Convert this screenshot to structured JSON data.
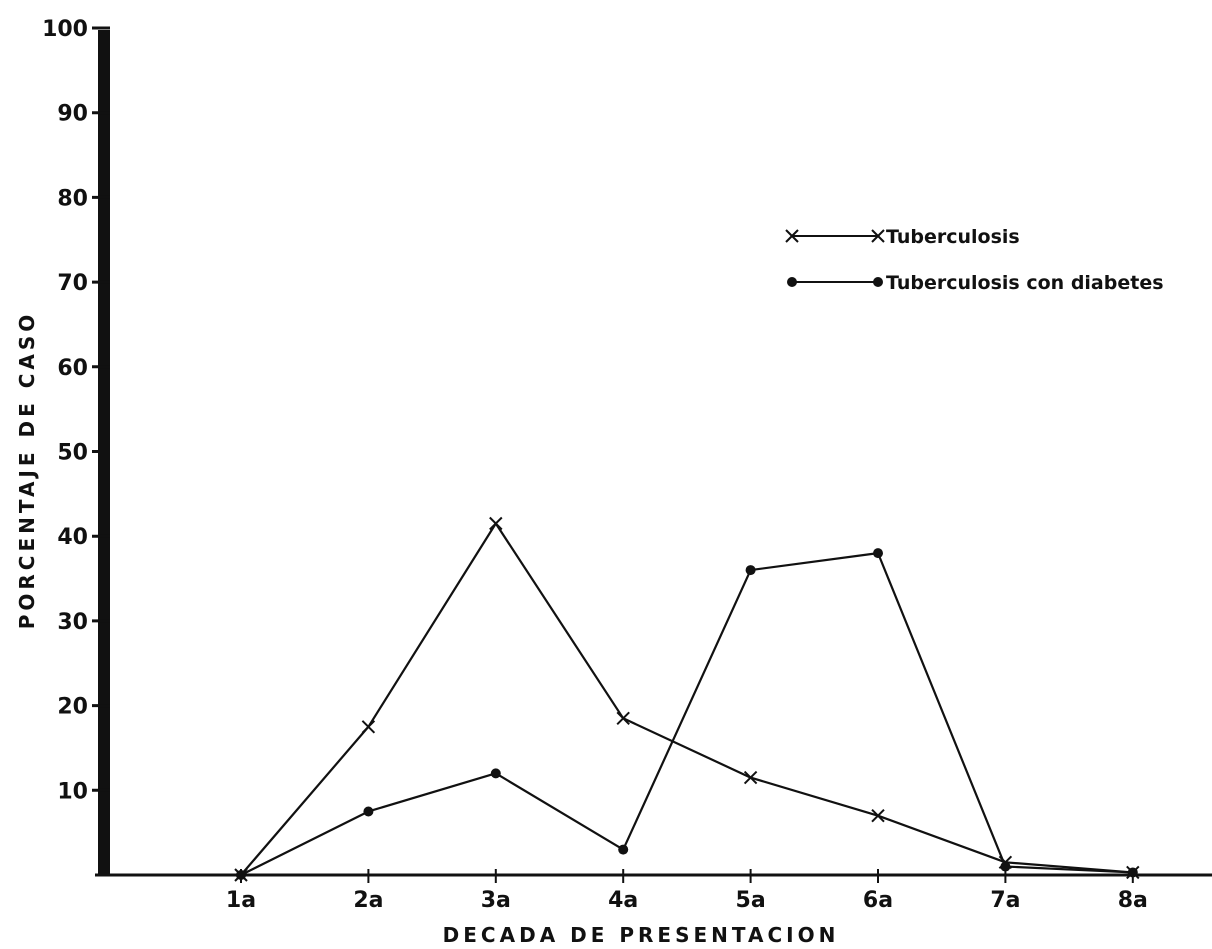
{
  "chart_data": {
    "type": "line",
    "title": "",
    "xlabel": "DECADA DE PRESENTACION",
    "ylabel": "PORCENTAJE DE CASO",
    "categories": [
      "1a",
      "2a",
      "3a",
      "4a",
      "5a",
      "6a",
      "7a",
      "8a"
    ],
    "ylim": [
      0,
      100
    ],
    "yticks": [
      "10",
      "20",
      "30",
      "40",
      "50",
      "60",
      "70",
      "80",
      "90",
      "100"
    ],
    "grid": false,
    "legend_position": "top-right",
    "series": [
      {
        "name": "Tuberculosis",
        "marker": "x",
        "values": [
          0,
          17.5,
          41.5,
          18.5,
          11.5,
          7,
          1.5,
          0.3
        ]
      },
      {
        "name": "Tuberculosis con diabetes",
        "marker": "dot",
        "values": [
          0,
          7.5,
          12,
          3,
          36,
          38,
          1,
          0.3
        ]
      }
    ],
    "colors": {
      "ink": "#111111",
      "background": "#ffffff"
    }
  }
}
